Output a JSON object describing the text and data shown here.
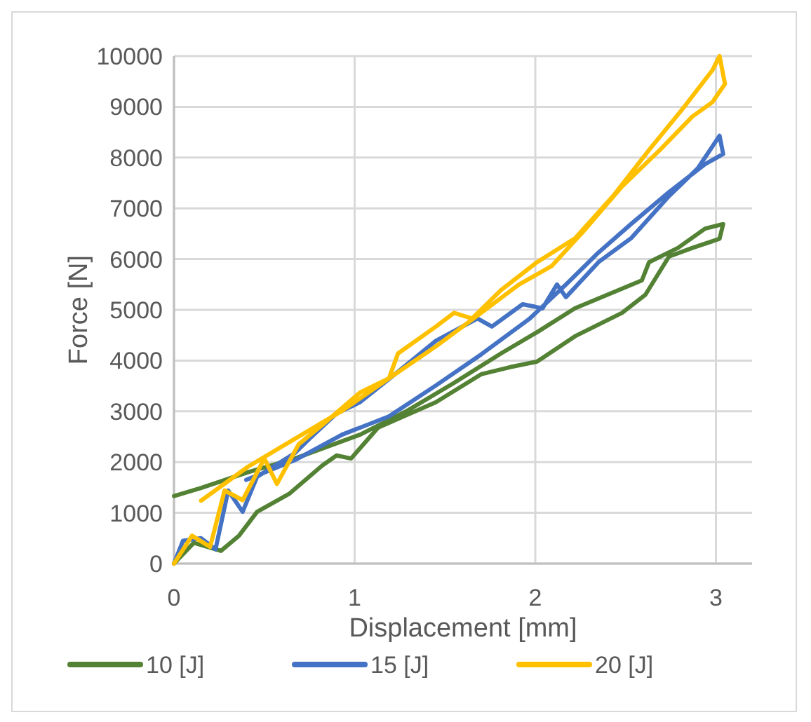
{
  "chart_data": {
    "type": "line",
    "xlabel": "Displacement [mm]",
    "ylabel": "Force [N]",
    "xlim": [
      0,
      3.2
    ],
    "xticks": [
      0,
      1,
      2,
      3
    ],
    "ylim": [
      0,
      10000
    ],
    "yticks": [
      0,
      1000,
      2000,
      3000,
      4000,
      5000,
      6000,
      7000,
      8000,
      9000,
      10000
    ],
    "grid": true,
    "legend": "bottom",
    "marker": "none",
    "line_style": "solid",
    "series": [
      {
        "name": "10 [J]",
        "color": "#548235",
        "x": [
          0,
          0.11,
          0.26,
          0.36,
          0.46,
          0.64,
          0.82,
          0.9,
          0.98,
          1.13,
          1.45,
          1.7,
          1.86,
          2.01,
          2.22,
          2.48,
          2.61,
          2.74,
          2.87,
          3.02,
          3.04,
          2.94,
          2.79,
          2.63,
          2.59,
          2.22,
          2.01,
          1.81,
          1.55,
          1.29,
          1.03,
          0.67,
          0.41,
          0.15,
          0
        ],
        "values": [
          0,
          410,
          250,
          550,
          1020,
          1380,
          1930,
          2130,
          2070,
          2680,
          3180,
          3730,
          3870,
          3980,
          4480,
          4940,
          5300,
          6050,
          6220,
          6400,
          6690,
          6600,
          6220,
          5940,
          5580,
          5030,
          4560,
          4140,
          3560,
          3010,
          2540,
          2070,
          1800,
          1490,
          1330
        ]
      },
      {
        "name": "15 [J]",
        "color": "#4472c4",
        "x": [
          0,
          0.05,
          0.15,
          0.23,
          0.3,
          0.38,
          0.46,
          0.67,
          0.75,
          0.9,
          1.03,
          1.24,
          1.45,
          1.68,
          1.76,
          1.93,
          2.04,
          2.12,
          2.17,
          2.35,
          2.53,
          2.74,
          2.9,
          3.02,
          3.04,
          2.94,
          2.74,
          2.53,
          2.35,
          2.17,
          1.97,
          1.7,
          1.45,
          1.19,
          0.93,
          0.67,
          0.54,
          0.4
        ],
        "values": [
          0,
          450,
          500,
          280,
          1440,
          1020,
          1710,
          2180,
          2460,
          2960,
          3180,
          3780,
          4390,
          4830,
          4670,
          5110,
          5030,
          5500,
          5250,
          5940,
          6410,
          7240,
          7790,
          8430,
          8070,
          7870,
          7320,
          6690,
          6130,
          5500,
          4830,
          4120,
          3510,
          2900,
          2540,
          2040,
          1850,
          1650
        ]
      },
      {
        "name": "20 [J]",
        "color": "#ffc000",
        "x": [
          0,
          0.1,
          0.2,
          0.28,
          0.38,
          0.5,
          0.57,
          0.69,
          0.82,
          1.03,
          1.19,
          1.24,
          1.45,
          1.55,
          1.65,
          1.81,
          2.01,
          2.22,
          2.43,
          2.63,
          2.82,
          2.98,
          3.02,
          3.05,
          2.98,
          2.87,
          2.69,
          2.48,
          2.28,
          2.09,
          1.91,
          1.7,
          1.45,
          1.19,
          0.93,
          0.67,
          0.41,
          0.15
        ],
        "values": [
          0,
          550,
          330,
          1440,
          1250,
          2070,
          1570,
          2350,
          2730,
          3370,
          3650,
          4140,
          4670,
          4940,
          4830,
          5390,
          5940,
          6410,
          7240,
          8150,
          8980,
          9720,
          10000,
          9450,
          9090,
          8810,
          8150,
          7430,
          6600,
          5860,
          5500,
          4940,
          4280,
          3650,
          3010,
          2460,
          1910,
          1240
        ]
      }
    ]
  }
}
